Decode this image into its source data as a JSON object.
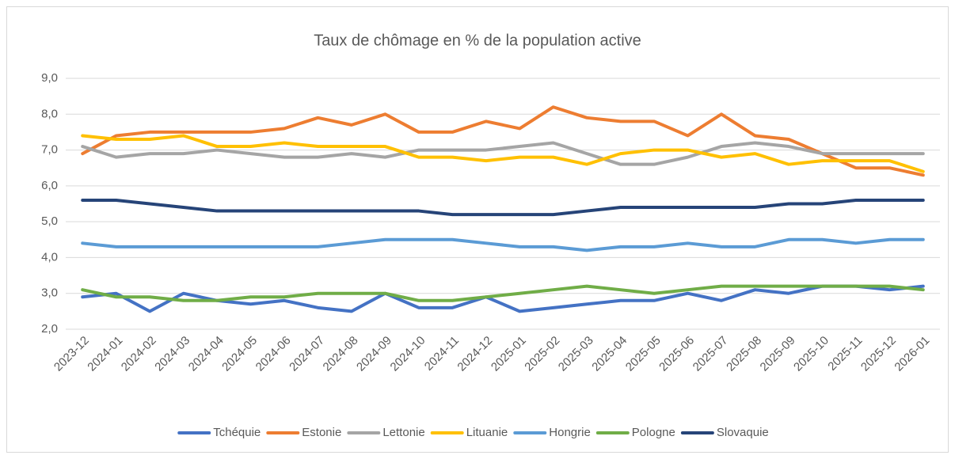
{
  "chart_data": {
    "type": "line",
    "title": "Taux de chômage en % de la population active",
    "categories": [
      "2023-12",
      "2024-01",
      "2024-02",
      "2024-03",
      "2024-04",
      "2024-05",
      "2024-06",
      "2024-07",
      "2024-08",
      "2024-09",
      "2024-10",
      "2024-11",
      "2024-12",
      "2025-01",
      "2025-02",
      "2025-03",
      "2025-04",
      "2025-05",
      "2025-06",
      "2025-07",
      "2025-08",
      "2025-09",
      "2025-10",
      "2025-11",
      "2025-12",
      "2026-01"
    ],
    "series": [
      {
        "name": "Tchéquie",
        "color": "#4472c4",
        "values": [
          2.9,
          3.0,
          2.5,
          3.0,
          2.8,
          2.7,
          2.8,
          2.6,
          2.5,
          3.0,
          2.6,
          2.6,
          2.9,
          2.5,
          2.6,
          2.7,
          2.8,
          2.8,
          3.0,
          2.8,
          3.1,
          3.0,
          3.2,
          3.2,
          3.1,
          3.2
        ]
      },
      {
        "name": "Estonie",
        "color": "#ed7d31",
        "values": [
          6.9,
          7.4,
          7.5,
          7.5,
          7.5,
          7.5,
          7.6,
          7.9,
          7.7,
          8.0,
          7.5,
          7.5,
          7.8,
          7.6,
          8.2,
          7.9,
          7.8,
          7.8,
          7.4,
          8.0,
          7.4,
          7.3,
          6.9,
          6.5,
          6.5,
          6.3
        ]
      },
      {
        "name": "Lettonie",
        "color": "#a5a5a5",
        "values": [
          7.1,
          6.8,
          6.9,
          6.9,
          7.0,
          6.9,
          6.8,
          6.8,
          6.9,
          6.8,
          7.0,
          7.0,
          7.0,
          7.1,
          7.2,
          6.9,
          6.6,
          6.6,
          6.8,
          7.1,
          7.2,
          7.1,
          6.9,
          6.9,
          6.9,
          6.9
        ]
      },
      {
        "name": "Lituanie",
        "color": "#ffc000",
        "values": [
          7.4,
          7.3,
          7.3,
          7.4,
          7.1,
          7.1,
          7.2,
          7.1,
          7.1,
          7.1,
          6.8,
          6.8,
          6.7,
          6.8,
          6.8,
          6.6,
          6.9,
          7.0,
          7.0,
          6.8,
          6.9,
          6.6,
          6.7,
          6.7,
          6.7,
          6.4
        ]
      },
      {
        "name": "Hongrie",
        "color": "#5b9bd5",
        "values": [
          4.4,
          4.3,
          4.3,
          4.3,
          4.3,
          4.3,
          4.3,
          4.3,
          4.4,
          4.5,
          4.5,
          4.5,
          4.4,
          4.3,
          4.3,
          4.2,
          4.3,
          4.3,
          4.4,
          4.3,
          4.3,
          4.5,
          4.5,
          4.4,
          4.5,
          4.5
        ]
      },
      {
        "name": "Pologne",
        "color": "#70ad47",
        "values": [
          3.1,
          2.9,
          2.9,
          2.8,
          2.8,
          2.9,
          2.9,
          3.0,
          3.0,
          3.0,
          2.8,
          2.8,
          2.9,
          3.0,
          3.1,
          3.2,
          3.1,
          3.0,
          3.1,
          3.2,
          3.2,
          3.2,
          3.2,
          3.2,
          3.2,
          3.1
        ]
      },
      {
        "name": "Slovaquie",
        "color": "#264478",
        "values": [
          5.6,
          5.6,
          5.5,
          5.4,
          5.3,
          5.3,
          5.3,
          5.3,
          5.3,
          5.3,
          5.3,
          5.2,
          5.2,
          5.2,
          5.2,
          5.3,
          5.4,
          5.4,
          5.4,
          5.4,
          5.4,
          5.5,
          5.5,
          5.6,
          5.6,
          5.6
        ]
      }
    ],
    "ylim": [
      2,
      9
    ],
    "yticks": [
      {
        "value": 2,
        "label": "2,0"
      },
      {
        "value": 3,
        "label": "3,0"
      },
      {
        "value": 4,
        "label": "4,0"
      },
      {
        "value": 5,
        "label": "5,0"
      },
      {
        "value": 6,
        "label": "6,0"
      },
      {
        "value": 7,
        "label": "7,0"
      },
      {
        "value": 8,
        "label": "8,0"
      },
      {
        "value": 9,
        "label": "9,0"
      }
    ],
    "grid": true,
    "legend": "bottom"
  }
}
